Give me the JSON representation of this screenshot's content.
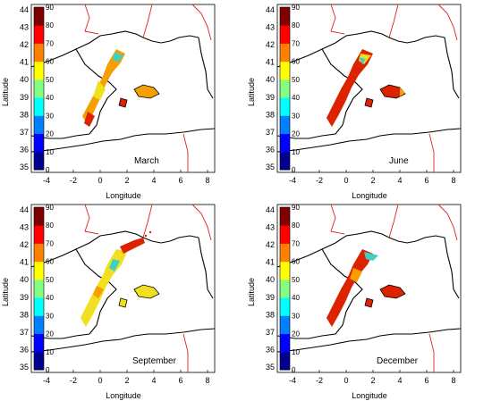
{
  "figure": {
    "colorbar": {
      "ticks": [
        "90",
        "80",
        "70",
        "60",
        "50",
        "40",
        "30",
        "20",
        "10",
        "0"
      ],
      "colors": [
        "#00008f",
        "#0000ff",
        "#0080ff",
        "#00ffff",
        "#80ff80",
        "#ffff00",
        "#ff8000",
        "#ff0000",
        "#800000"
      ]
    },
    "axes": {
      "xlabel": "Longitude",
      "ylabel": "Latitude",
      "xticks": [
        "-4",
        "-2",
        "0",
        "2",
        "4",
        "6",
        "8"
      ],
      "yticks": [
        "44",
        "43",
        "42",
        "41",
        "40",
        "39",
        "38",
        "37",
        "36",
        "35"
      ]
    },
    "colors": {
      "coast": "#000000",
      "border": "#e02020",
      "high": "#dd2200",
      "mid": "#f5a000",
      "low": "#f0e020",
      "cyan": "#40d0c0"
    },
    "panels": [
      {
        "id": "march",
        "label": "March"
      },
      {
        "id": "june",
        "label": "June"
      },
      {
        "id": "september",
        "label": "September"
      },
      {
        "id": "december",
        "label": "December"
      }
    ]
  }
}
